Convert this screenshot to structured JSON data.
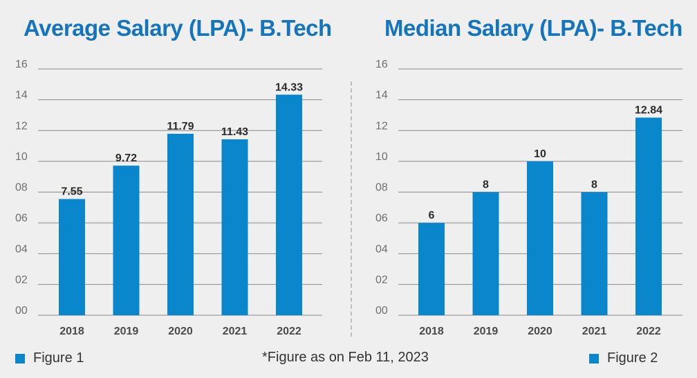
{
  "colors": {
    "bar": "#0a86cc",
    "title": "#1474bd"
  },
  "footnote": "*Figure as on Feb 11, 2023",
  "chart_data": [
    {
      "type": "bar",
      "title": "Average Salary (LPA)- B.Tech",
      "categories": [
        "2018",
        "2019",
        "2020",
        "2021",
        "2022"
      ],
      "values": [
        7.55,
        9.72,
        11.79,
        11.43,
        14.33
      ],
      "value_labels": [
        "7.55",
        "9.72",
        "11.79",
        "11.43",
        "14.33"
      ],
      "ylim": [
        0,
        16
      ],
      "yticks": [
        "00",
        "02",
        "04",
        "06",
        "08",
        "10",
        "12",
        "14",
        "16"
      ],
      "legend": "Figure 1",
      "grid": true
    },
    {
      "type": "bar",
      "title": "Median Salary (LPA)- B.Tech",
      "categories": [
        "2018",
        "2019",
        "2020",
        "2021",
        "2022"
      ],
      "values": [
        6,
        8,
        10,
        8,
        12.84
      ],
      "value_labels": [
        "6",
        "8",
        "10",
        "8",
        "12.84"
      ],
      "ylim": [
        0,
        16
      ],
      "yticks": [
        "00",
        "02",
        "04",
        "06",
        "08",
        "10",
        "12",
        "14",
        "16"
      ],
      "legend": "Figure 2",
      "grid": true
    }
  ]
}
